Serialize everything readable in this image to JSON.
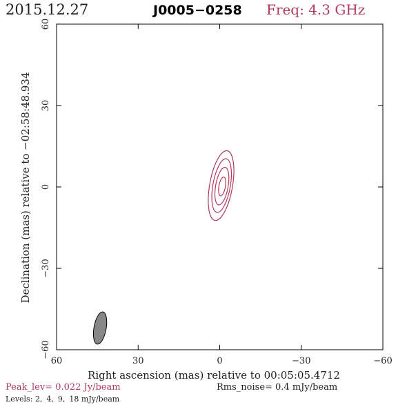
{
  "header": {
    "date": "2015.12.27",
    "source": "J0005−0258",
    "freq": "Freq: 4.3 GHz"
  },
  "chart_data": {
    "type": "contour",
    "xlabel": "Right ascension (mas) relative to 00:05:05.4712",
    "ylabel": "Declination (mas) relative to −02:58:48.934",
    "xlim": [
      60,
      -60
    ],
    "ylim": [
      -60,
      60
    ],
    "xticks": [
      60,
      30,
      0,
      -30,
      -60
    ],
    "yticks": [
      60,
      30,
      0,
      -30,
      -60
    ],
    "xtick_labels": [
      "60",
      "30",
      "0",
      "−30",
      "−60"
    ],
    "ytick_labels": [
      "60",
      "30",
      "0",
      "−30",
      "−60"
    ],
    "contour_levels_mJy_per_beam": [
      2,
      4,
      9,
      18
    ],
    "contours": [
      {
        "level": 2,
        "center": [
          -0.5,
          0.5
        ],
        "semi_major": 13,
        "semi_minor": 4.2,
        "pa_deg": 10
      },
      {
        "level": 4,
        "center": [
          -0.7,
          0.5
        ],
        "semi_major": 10,
        "semi_minor": 3.2,
        "pa_deg": 10
      },
      {
        "level": 9,
        "center": [
          -0.8,
          0.3
        ],
        "semi_major": 7,
        "semi_minor": 2.3,
        "pa_deg": 10
      },
      {
        "level": 18,
        "center": [
          -0.9,
          0.2
        ],
        "semi_major": 3.5,
        "semi_minor": 1.2,
        "pa_deg": 10
      }
    ],
    "beam": {
      "center": [
        44,
        -52
      ],
      "semi_major": 6,
      "semi_minor": 2,
      "pa_deg": 10
    },
    "contour_color": "#b03a5b",
    "beam_color": "#888888"
  },
  "footer": {
    "peak": "Peak_lev=  0.022 Jy/beam",
    "rms": "Rms_noise=  0.4 mJy/beam",
    "levels_label": "Levels:",
    "levels": [
      "2,",
      "4,",
      "9,",
      "18 mJy/beam"
    ]
  }
}
